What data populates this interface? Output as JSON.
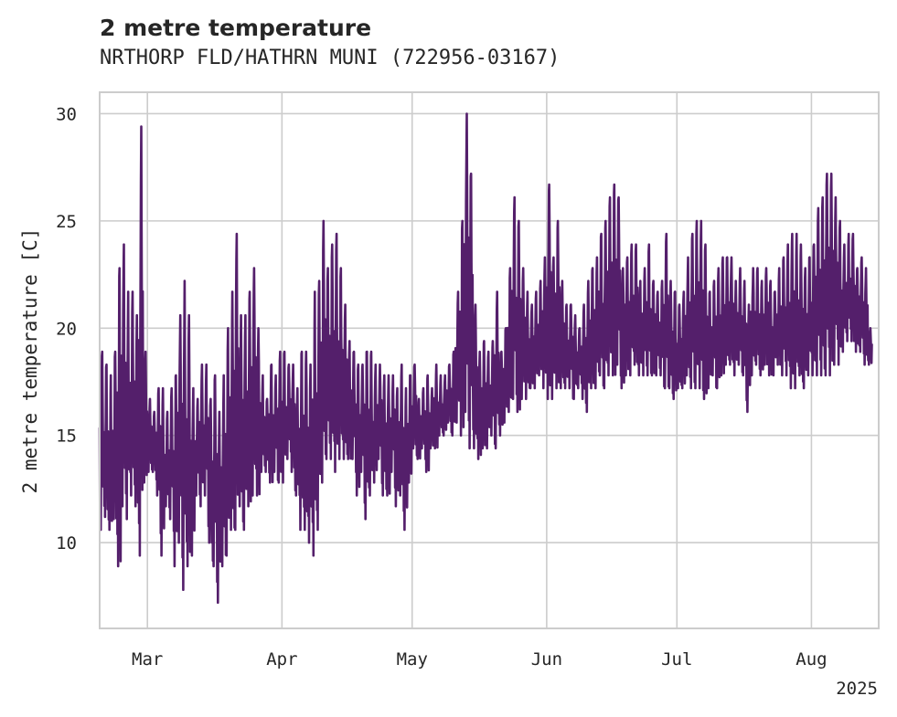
{
  "chart_data": {
    "type": "line",
    "title": "2 metre temperature",
    "subtitle": "NRTHORP FLD/HATHRN MUNI (722956-03167)",
    "xlabel": "",
    "ylabel": "2 metre temperature [C]",
    "x_range": [
      "2025-02-18",
      "2025-08-16"
    ],
    "ylim": [
      6.0,
      31.0
    ],
    "x_ticks": [
      {
        "date": "2025-03-01",
        "label": "Mar"
      },
      {
        "date": "2025-04-01",
        "label": "Apr"
      },
      {
        "date": "2025-05-01",
        "label": "May"
      },
      {
        "date": "2025-06-01",
        "label": "Jun"
      },
      {
        "date": "2025-07-01",
        "label": "Jul"
      },
      {
        "date": "2025-08-01",
        "label": "Aug"
      }
    ],
    "x_offset_label": "2025",
    "y_ticks": [
      10,
      15,
      20,
      25,
      30
    ],
    "grid": true,
    "legend": "none",
    "line_color": "#541f6b",
    "series": [
      {
        "x": [
          "2025-02-18",
          "2025-02-19",
          "2025-02-20",
          "2025-02-21",
          "2025-02-22",
          "2025-02-23",
          "2025-02-24",
          "2025-02-25",
          "2025-02-26",
          "2025-02-27",
          "2025-02-28",
          "2025-03-01",
          "2025-03-02",
          "2025-03-03",
          "2025-03-04",
          "2025-03-05",
          "2025-03-06",
          "2025-03-07",
          "2025-03-08",
          "2025-03-09",
          "2025-03-10",
          "2025-03-11",
          "2025-03-12",
          "2025-03-13",
          "2025-03-14",
          "2025-03-15",
          "2025-03-16",
          "2025-03-17",
          "2025-03-18",
          "2025-03-19",
          "2025-03-20",
          "2025-03-21",
          "2025-03-22",
          "2025-03-23",
          "2025-03-24",
          "2025-03-25",
          "2025-03-26",
          "2025-03-27",
          "2025-03-28",
          "2025-03-29",
          "2025-03-30",
          "2025-03-31",
          "2025-04-01",
          "2025-04-02",
          "2025-04-03",
          "2025-04-04",
          "2025-04-05",
          "2025-04-06",
          "2025-04-07",
          "2025-04-08",
          "2025-04-09",
          "2025-04-10",
          "2025-04-11",
          "2025-04-12",
          "2025-04-13",
          "2025-04-14",
          "2025-04-15",
          "2025-04-16",
          "2025-04-17",
          "2025-04-18",
          "2025-04-19",
          "2025-04-20",
          "2025-04-21",
          "2025-04-22",
          "2025-04-23",
          "2025-04-24",
          "2025-04-25",
          "2025-04-26",
          "2025-04-27",
          "2025-04-28",
          "2025-04-29",
          "2025-04-30",
          "2025-05-01",
          "2025-05-02",
          "2025-05-03",
          "2025-05-04",
          "2025-05-05",
          "2025-05-06",
          "2025-05-07",
          "2025-05-08",
          "2025-05-09",
          "2025-05-10",
          "2025-05-11",
          "2025-05-12",
          "2025-05-13",
          "2025-05-14",
          "2025-05-15",
          "2025-05-16",
          "2025-05-17",
          "2025-05-18",
          "2025-05-19",
          "2025-05-20",
          "2025-05-21",
          "2025-05-22",
          "2025-05-23",
          "2025-05-24",
          "2025-05-25",
          "2025-05-26",
          "2025-05-27",
          "2025-05-28",
          "2025-05-29",
          "2025-05-30",
          "2025-05-31",
          "2025-06-01",
          "2025-06-02",
          "2025-06-03",
          "2025-06-04",
          "2025-06-05",
          "2025-06-06",
          "2025-06-07",
          "2025-06-08",
          "2025-06-09",
          "2025-06-10",
          "2025-06-11",
          "2025-06-12",
          "2025-06-13",
          "2025-06-14",
          "2025-06-15",
          "2025-06-16",
          "2025-06-17",
          "2025-06-18",
          "2025-06-19",
          "2025-06-20",
          "2025-06-21",
          "2025-06-22",
          "2025-06-23",
          "2025-06-24",
          "2025-06-25",
          "2025-06-26",
          "2025-06-27",
          "2025-06-28",
          "2025-06-29",
          "2025-06-30",
          "2025-07-01",
          "2025-07-02",
          "2025-07-03",
          "2025-07-04",
          "2025-07-05",
          "2025-07-06",
          "2025-07-07",
          "2025-07-08",
          "2025-07-09",
          "2025-07-10",
          "2025-07-11",
          "2025-07-12",
          "2025-07-13",
          "2025-07-14",
          "2025-07-15",
          "2025-07-16",
          "2025-07-17",
          "2025-07-18",
          "2025-07-19",
          "2025-07-20",
          "2025-07-21",
          "2025-07-22",
          "2025-07-23",
          "2025-07-24",
          "2025-07-25",
          "2025-07-26",
          "2025-07-27",
          "2025-07-28",
          "2025-07-29",
          "2025-07-30",
          "2025-07-31",
          "2025-08-01",
          "2025-08-02",
          "2025-08-03",
          "2025-08-04",
          "2025-08-05",
          "2025-08-06",
          "2025-08-07",
          "2025-08-08",
          "2025-08-09",
          "2025-08-10",
          "2025-08-11",
          "2025-08-12",
          "2025-08-13",
          "2025-08-14",
          "2025-08-15",
          "2025-08-16"
        ],
        "min": [
          10.6,
          11.2,
          10.6,
          11.1,
          8.9,
          11.7,
          11.1,
          12.2,
          11.7,
          9.4,
          12.8,
          13.3,
          13.3,
          12.2,
          9.4,
          11.7,
          11.1,
          8.9,
          10.0,
          7.8,
          8.9,
          9.4,
          12.2,
          11.7,
          12.2,
          10.0,
          8.9,
          7.2,
          8.9,
          9.4,
          10.6,
          10.6,
          11.7,
          10.6,
          11.7,
          12.2,
          12.2,
          13.3,
          13.3,
          12.8,
          13.3,
          12.8,
          12.8,
          13.9,
          13.3,
          12.2,
          10.6,
          10.6,
          10.0,
          9.4,
          10.6,
          12.8,
          13.9,
          13.9,
          13.3,
          13.9,
          13.9,
          13.9,
          13.9,
          12.2,
          13.3,
          11.1,
          12.2,
          12.8,
          13.9,
          12.2,
          12.2,
          13.3,
          11.7,
          12.2,
          10.6,
          12.8,
          14.4,
          13.9,
          14.4,
          13.3,
          14.4,
          14.4,
          15.0,
          15.0,
          15.6,
          15.0,
          15.6,
          15.0,
          16.1,
          14.4,
          14.4,
          13.9,
          14.4,
          14.4,
          15.0,
          14.4,
          15.0,
          15.6,
          16.1,
          16.7,
          16.1,
          16.7,
          16.7,
          17.2,
          17.2,
          17.8,
          17.2,
          16.7,
          16.7,
          17.2,
          17.2,
          17.2,
          17.2,
          16.7,
          17.2,
          16.7,
          16.1,
          17.2,
          17.2,
          17.8,
          17.2,
          17.8,
          17.8,
          18.3,
          17.2,
          17.8,
          17.8,
          18.3,
          17.8,
          17.8,
          17.8,
          17.8,
          17.8,
          17.8,
          17.2,
          17.2,
          16.7,
          17.2,
          17.2,
          17.8,
          17.2,
          17.2,
          17.2,
          16.7,
          17.2,
          17.8,
          17.2,
          17.8,
          18.3,
          18.3,
          17.8,
          18.3,
          17.8,
          16.1,
          17.8,
          18.3,
          17.8,
          18.3,
          17.8,
          17.8,
          18.3,
          17.8,
          17.8,
          17.2,
          17.2,
          17.8,
          17.2,
          17.8,
          17.8,
          17.8,
          17.8,
          17.8,
          17.8,
          18.3,
          18.3,
          18.9,
          19.4,
          19.4,
          18.9,
          18.9,
          18.3,
          18.3,
          19.4,
          19.4,
          19.4,
          19.4
        ],
        "max": [
          18.9,
          18.3,
          17.8,
          18.9,
          22.8,
          23.9,
          21.7,
          21.7,
          20.6,
          29.4,
          18.9,
          16.7,
          16.1,
          17.2,
          17.2,
          16.1,
          17.2,
          17.8,
          20.6,
          22.2,
          20.6,
          17.2,
          16.7,
          18.3,
          18.3,
          16.7,
          17.8,
          16.1,
          17.8,
          20.0,
          21.7,
          24.4,
          20.6,
          20.6,
          21.7,
          22.8,
          20.0,
          17.8,
          16.7,
          18.3,
          17.8,
          18.9,
          18.9,
          18.3,
          18.3,
          17.2,
          18.9,
          18.9,
          18.3,
          21.7,
          22.2,
          25.0,
          22.8,
          23.9,
          24.4,
          22.8,
          21.1,
          19.4,
          18.9,
          18.3,
          18.3,
          18.9,
          18.9,
          18.3,
          18.3,
          17.8,
          17.8,
          17.8,
          17.2,
          18.3,
          17.2,
          17.8,
          18.3,
          16.7,
          17.2,
          17.8,
          17.2,
          18.3,
          17.8,
          17.8,
          18.3,
          18.9,
          21.7,
          25.0,
          30.0,
          27.2,
          21.1,
          18.9,
          19.4,
          18.9,
          19.4,
          21.7,
          18.9,
          20.0,
          22.8,
          26.1,
          25.0,
          22.8,
          21.7,
          21.1,
          21.7,
          22.2,
          23.3,
          26.7,
          23.3,
          25.0,
          22.2,
          21.1,
          21.1,
          20.6,
          20.0,
          21.1,
          22.2,
          22.8,
          23.3,
          24.4,
          25.0,
          26.1,
          26.7,
          26.1,
          22.8,
          23.3,
          23.9,
          23.9,
          22.2,
          22.8,
          23.9,
          22.2,
          21.7,
          22.2,
          24.4,
          22.2,
          21.7,
          21.1,
          21.7,
          23.3,
          24.4,
          25.0,
          25.0,
          23.9,
          21.7,
          22.2,
          22.8,
          23.3,
          23.3,
          23.3,
          22.2,
          22.8,
          22.2,
          21.1,
          22.8,
          22.8,
          22.2,
          22.8,
          22.2,
          21.7,
          22.8,
          23.3,
          23.9,
          24.4,
          24.4,
          23.9,
          22.8,
          23.3,
          23.9,
          25.6,
          26.1,
          27.2,
          27.2,
          26.1,
          25.0,
          23.9,
          24.4,
          24.4,
          22.8,
          23.3,
          22.8,
          20.0
        ]
      }
    ]
  }
}
